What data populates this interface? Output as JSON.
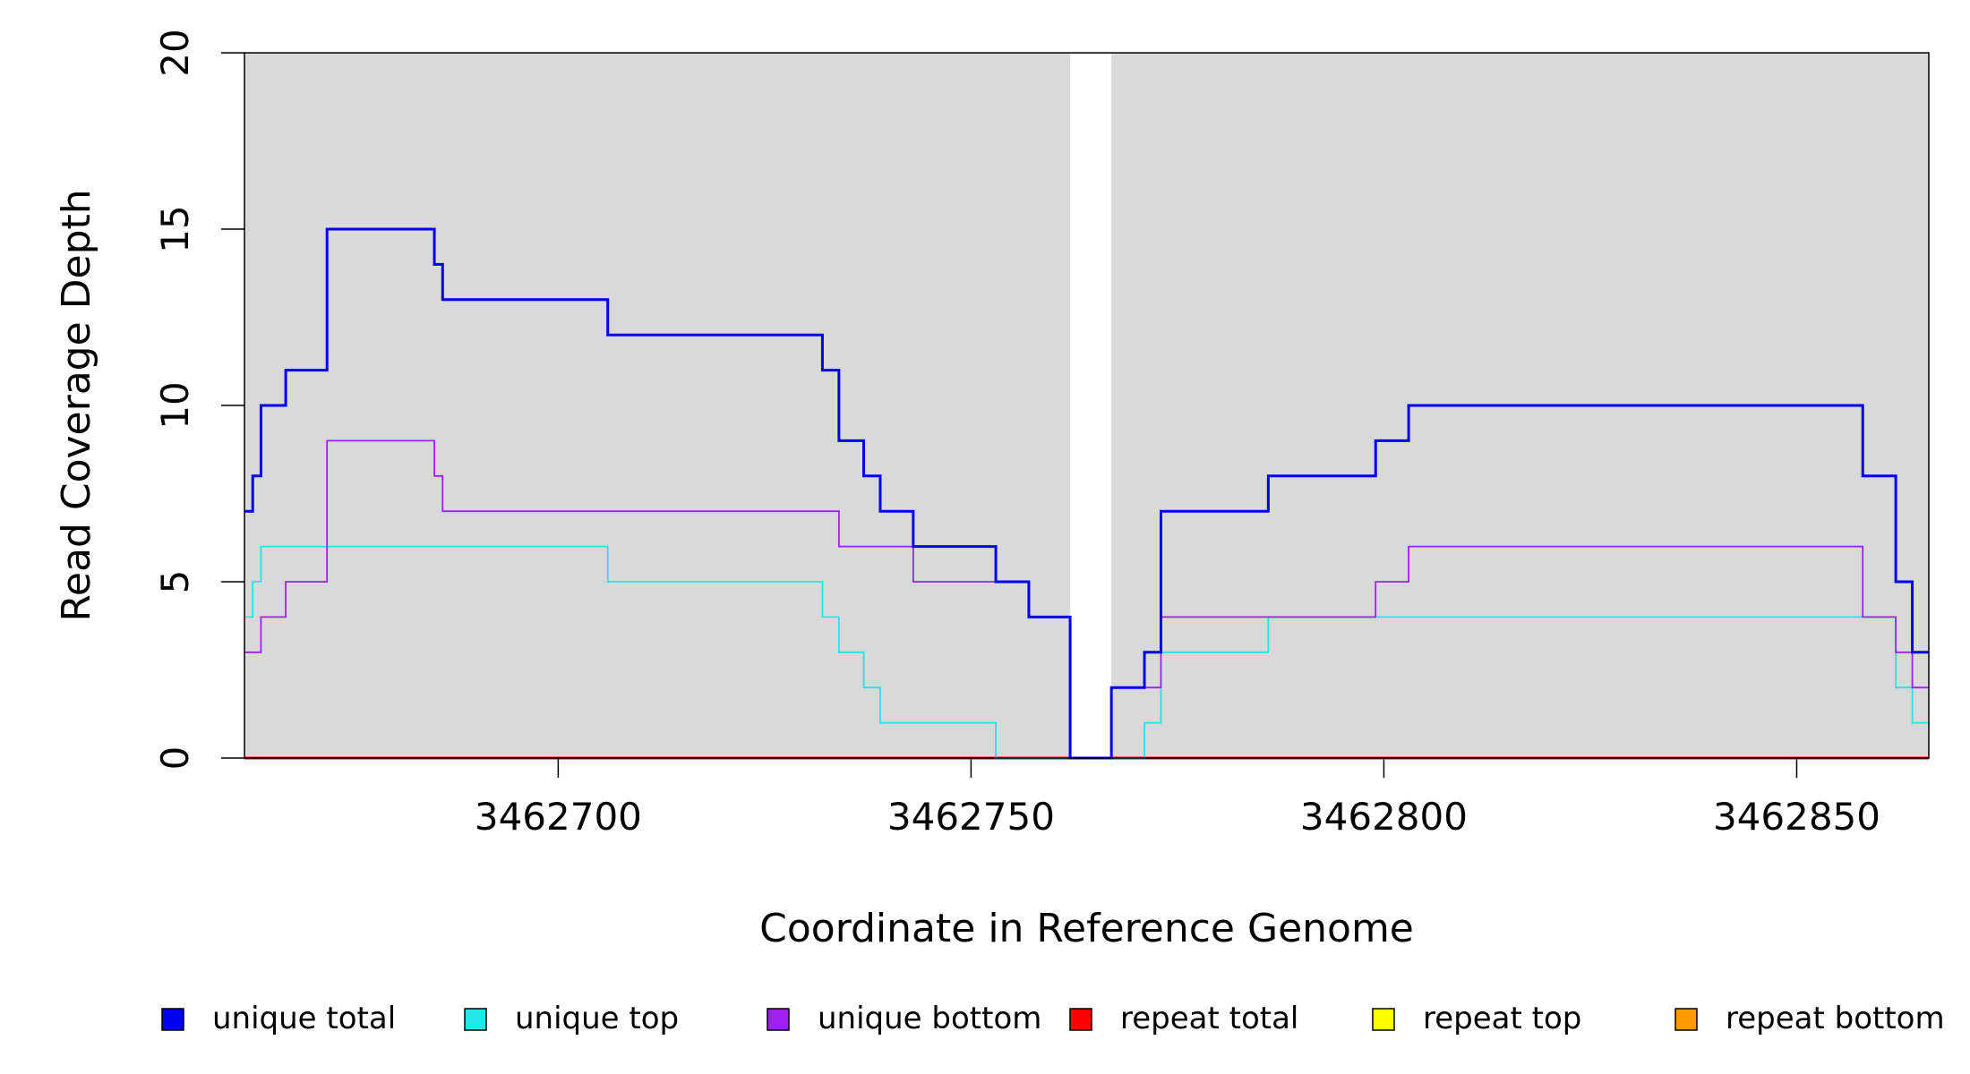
{
  "chart_data": {
    "type": "line",
    "step": true,
    "xlabel": "Coordinate in Reference Genome",
    "ylabel": "Read Coverage Depth",
    "xlim": [
      3462662,
      3462866
    ],
    "ylim": [
      0,
      20
    ],
    "x_ticks": [
      3462700,
      3462750,
      3462800,
      3462850
    ],
    "y_ticks": [
      0,
      5,
      10,
      15,
      20
    ],
    "plot_background": "#d9d9d9",
    "uncovered_region": [
      3462762,
      3462767
    ],
    "uncovered_color": "#ffffff",
    "legend_position": "bottom",
    "series": [
      {
        "name": "unique total",
        "color": "#0000ee",
        "points": [
          [
            3462662,
            7
          ],
          [
            3462663,
            8
          ],
          [
            3462664,
            10
          ],
          [
            3462667,
            11
          ],
          [
            3462672,
            15
          ],
          [
            3462685,
            14
          ],
          [
            3462686,
            13
          ],
          [
            3462706,
            12
          ],
          [
            3462732,
            11
          ],
          [
            3462734,
            9
          ],
          [
            3462737,
            8
          ],
          [
            3462739,
            7
          ],
          [
            3462743,
            6
          ],
          [
            3462753,
            5
          ],
          [
            3462757,
            4
          ],
          [
            3462762,
            0
          ],
          [
            3462767,
            2
          ],
          [
            3462771,
            3
          ],
          [
            3462773,
            7
          ],
          [
            3462786,
            8
          ],
          [
            3462799,
            9
          ],
          [
            3462803,
            10
          ],
          [
            3462858,
            8
          ],
          [
            3462862,
            5
          ],
          [
            3462864,
            3
          ],
          [
            3462866,
            3
          ]
        ]
      },
      {
        "name": "unique top",
        "color": "#22e6e6",
        "points": [
          [
            3462662,
            4
          ],
          [
            3462663,
            5
          ],
          [
            3462664,
            6
          ],
          [
            3462706,
            5
          ],
          [
            3462732,
            4
          ],
          [
            3462734,
            3
          ],
          [
            3462737,
            2
          ],
          [
            3462739,
            1
          ],
          [
            3462753,
            0
          ],
          [
            3462771,
            1
          ],
          [
            3462773,
            3
          ],
          [
            3462786,
            4
          ],
          [
            3462858,
            4
          ],
          [
            3462862,
            2
          ],
          [
            3462864,
            1
          ],
          [
            3462866,
            1
          ]
        ]
      },
      {
        "name": "unique bottom",
        "color": "#a020f0",
        "points": [
          [
            3462662,
            3
          ],
          [
            3462664,
            4
          ],
          [
            3462667,
            5
          ],
          [
            3462672,
            9
          ],
          [
            3462685,
            8
          ],
          [
            3462686,
            7
          ],
          [
            3462734,
            6
          ],
          [
            3462743,
            5
          ],
          [
            3462757,
            4
          ],
          [
            3462762,
            0
          ],
          [
            3462767,
            2
          ],
          [
            3462773,
            4
          ],
          [
            3462799,
            5
          ],
          [
            3462803,
            6
          ],
          [
            3462858,
            4
          ],
          [
            3462862,
            3
          ],
          [
            3462864,
            2
          ],
          [
            3462866,
            2
          ]
        ]
      },
      {
        "name": "repeat total",
        "color": "#ff0000",
        "points": [
          [
            3462662,
            0
          ],
          [
            3462866,
            0
          ]
        ]
      },
      {
        "name": "repeat top",
        "color": "#ffff00",
        "points": [
          [
            3462662,
            0
          ],
          [
            3462866,
            0
          ]
        ]
      },
      {
        "name": "repeat bottom",
        "color": "#ff9900",
        "points": [
          [
            3462662,
            0
          ],
          [
            3462866,
            0
          ]
        ]
      }
    ]
  }
}
